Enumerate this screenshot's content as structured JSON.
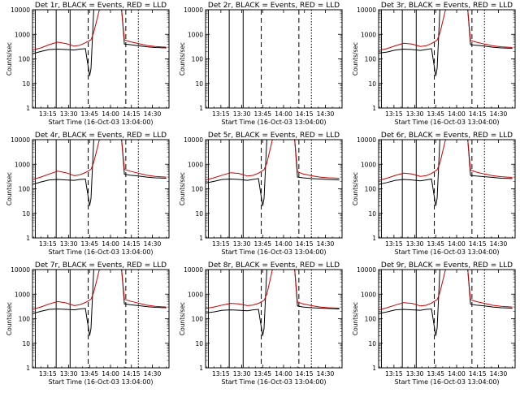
{
  "figure": {
    "xlabel_prefix": "Start Time",
    "start_time_label": "Start Time (16-Oct-03 13:04:00)",
    "ylabel": "Counts/sec",
    "legend_text": "BLACK = Events, RED = LLD"
  },
  "chart_data": [
    {
      "type": "line",
      "title": "Det 1r, BLACK = Events, RED = LLD",
      "xlabel": "Start Time (16-Oct-03 13:04:00)",
      "ylabel": "Counts/sec",
      "yscale": "log",
      "ylim": [
        1,
        10000
      ],
      "xlim": [
        "13:04",
        "14:42"
      ],
      "x_ticks": [
        "13:15",
        "13:30",
        "13:45",
        "14:00",
        "14:15",
        "14:30"
      ],
      "y_ticks": [
        "1",
        "10",
        "100",
        "1000",
        "10000"
      ],
      "has_data": true,
      "series": [
        {
          "color": "#000000",
          "x": [
            "13:04",
            "13:10",
            "13:16",
            "13:22",
            "13:28",
            "13:34",
            "13:38",
            "13:42",
            "13:45",
            "13:46",
            "13:48",
            "13:52",
            "14:03",
            "14:08",
            "14:10",
            "14:14",
            "14:20",
            "14:26",
            "14:32",
            "14:40"
          ],
          "values": [
            160,
            200,
            240,
            250,
            240,
            230,
            250,
            260,
            20,
            40,
            10000,
            10000,
            10000,
            10000,
            400,
            380,
            340,
            310,
            290,
            280
          ]
        },
        {
          "color": "#cc0000",
          "x": [
            "13:04",
            "13:10",
            "13:16",
            "13:22",
            "13:28",
            "13:34",
            "13:38",
            "13:42",
            "13:46",
            "13:48",
            "13:52",
            "14:03",
            "14:08",
            "14:10",
            "14:14",
            "14:20",
            "14:26",
            "14:32",
            "14:40"
          ],
          "values": [
            230,
            280,
            380,
            480,
            420,
            330,
            360,
            450,
            600,
            1200,
            10000,
            10000,
            10000,
            600,
            500,
            420,
            350,
            320,
            300
          ]
        }
      ]
    },
    {
      "type": "line",
      "title": "Det 2r, BLACK = Events, RED = LLD",
      "xlabel": "Start Time (16-Oct-03 13:04:00)",
      "ylabel": "Counts/sec",
      "yscale": "log",
      "ylim": [
        1,
        10000
      ],
      "xlim": [
        "13:04",
        "14:42"
      ],
      "x_ticks": [
        "13:15",
        "13:30",
        "13:45",
        "14:00",
        "14:15",
        "14:30"
      ],
      "y_ticks": [
        "1",
        "10",
        "100",
        "1000",
        "10000"
      ],
      "has_data": false,
      "series": []
    },
    {
      "type": "line",
      "title": "Det 3r, BLACK = Events, RED = LLD",
      "xlabel": "Start Time (16-Oct-03 13:04:00)",
      "ylabel": "Counts/sec",
      "yscale": "log",
      "ylim": [
        1,
        10000
      ],
      "xlim": [
        "13:04",
        "14:42"
      ],
      "x_ticks": [
        "13:15",
        "13:30",
        "13:45",
        "14:00",
        "14:15",
        "14:30"
      ],
      "y_ticks": [
        "1",
        "10",
        "100",
        "1000",
        "10000"
      ],
      "has_data": true,
      "series": [
        {
          "color": "#000000",
          "x": [
            "13:04",
            "13:10",
            "13:16",
            "13:22",
            "13:28",
            "13:34",
            "13:38",
            "13:42",
            "13:45",
            "13:46",
            "13:48",
            "13:52",
            "14:03",
            "14:08",
            "14:10",
            "14:14",
            "14:20",
            "14:26",
            "14:32",
            "14:40"
          ],
          "values": [
            170,
            190,
            230,
            250,
            240,
            220,
            240,
            260,
            20,
            40,
            10000,
            10000,
            10000,
            10000,
            380,
            360,
            330,
            300,
            280,
            270
          ]
        },
        {
          "color": "#cc0000",
          "x": [
            "13:04",
            "13:10",
            "13:16",
            "13:22",
            "13:28",
            "13:34",
            "13:38",
            "13:42",
            "13:46",
            "13:48",
            "13:52",
            "14:03",
            "14:08",
            "14:10",
            "14:14",
            "14:20",
            "14:26",
            "14:32",
            "14:40"
          ],
          "values": [
            220,
            260,
            340,
            430,
            400,
            320,
            340,
            420,
            580,
            1100,
            10000,
            10000,
            10000,
            560,
            480,
            400,
            340,
            310,
            290
          ]
        }
      ]
    },
    {
      "type": "line",
      "title": "Det 4r, BLACK = Events, RED = LLD",
      "xlabel": "Start Time (16-Oct-03 13:04:00)",
      "ylabel": "Counts/sec",
      "yscale": "log",
      "ylim": [
        1,
        10000
      ],
      "xlim": [
        "13:04",
        "14:42"
      ],
      "x_ticks": [
        "13:15",
        "13:30",
        "13:45",
        "14:00",
        "14:15",
        "14:30"
      ],
      "y_ticks": [
        "1",
        "10",
        "100",
        "1000",
        "10000"
      ],
      "has_data": true,
      "series": [
        {
          "color": "#000000",
          "x": [
            "13:04",
            "13:10",
            "13:16",
            "13:22",
            "13:28",
            "13:34",
            "13:38",
            "13:42",
            "13:45",
            "13:46",
            "13:48",
            "13:52",
            "14:03",
            "14:08",
            "14:10",
            "14:14",
            "14:20",
            "14:26",
            "14:32",
            "14:40"
          ],
          "values": [
            150,
            190,
            230,
            240,
            230,
            220,
            240,
            250,
            20,
            40,
            10000,
            10000,
            10000,
            10000,
            390,
            360,
            330,
            300,
            280,
            270
          ]
        },
        {
          "color": "#cc0000",
          "x": [
            "13:04",
            "13:10",
            "13:16",
            "13:22",
            "13:28",
            "13:34",
            "13:38",
            "13:42",
            "13:46",
            "13:48",
            "13:52",
            "14:03",
            "14:08",
            "14:10",
            "14:14",
            "14:20",
            "14:26",
            "14:32",
            "14:40"
          ],
          "values": [
            240,
            300,
            400,
            520,
            450,
            340,
            370,
            460,
            620,
            1200,
            10000,
            10000,
            10000,
            620,
            520,
            430,
            360,
            320,
            300
          ]
        }
      ]
    },
    {
      "type": "line",
      "title": "Det 5r, BLACK = Events, RED = LLD",
      "xlabel": "Start Time (16-Oct-03 13:04:00)",
      "ylabel": "Counts/sec",
      "yscale": "log",
      "ylim": [
        1,
        10000
      ],
      "xlim": [
        "13:04",
        "14:42"
      ],
      "x_ticks": [
        "13:15",
        "13:30",
        "13:45",
        "14:00",
        "14:15",
        "14:30"
      ],
      "y_ticks": [
        "1",
        "10",
        "100",
        "1000",
        "10000"
      ],
      "has_data": true,
      "series": [
        {
          "color": "#000000",
          "x": [
            "13:04",
            "13:10",
            "13:16",
            "13:22",
            "13:28",
            "13:34",
            "13:38",
            "13:42",
            "13:45",
            "13:46",
            "13:48",
            "13:52",
            "14:03",
            "14:08",
            "14:10",
            "14:14",
            "14:20",
            "14:26",
            "14:32",
            "14:40"
          ],
          "values": [
            170,
            200,
            240,
            250,
            240,
            220,
            240,
            260,
            20,
            40,
            10000,
            10000,
            10000,
            10000,
            300,
            280,
            260,
            250,
            240,
            230
          ]
        },
        {
          "color": "#cc0000",
          "x": [
            "13:04",
            "13:10",
            "13:16",
            "13:22",
            "13:28",
            "13:34",
            "13:38",
            "13:42",
            "13:46",
            "13:48",
            "13:52",
            "14:03",
            "14:08",
            "14:10",
            "14:14",
            "14:20",
            "14:26",
            "14:32",
            "14:40"
          ],
          "values": [
            230,
            280,
            360,
            450,
            420,
            330,
            350,
            430,
            600,
            1100,
            10000,
            10000,
            10000,
            500,
            400,
            340,
            300,
            280,
            270
          ]
        }
      ]
    },
    {
      "type": "line",
      "title": "Det 6r, BLACK = Events, RED = LLD",
      "xlabel": "Start Time (16-Oct-03 13:04:00)",
      "ylabel": "Counts/sec",
      "yscale": "log",
      "ylim": [
        1,
        10000
      ],
      "xlim": [
        "13:04",
        "14:42"
      ],
      "x_ticks": [
        "13:15",
        "13:30",
        "13:45",
        "14:00",
        "14:15",
        "14:30"
      ],
      "y_ticks": [
        "1",
        "10",
        "100",
        "1000",
        "10000"
      ],
      "has_data": true,
      "series": [
        {
          "color": "#000000",
          "x": [
            "13:04",
            "13:10",
            "13:16",
            "13:22",
            "13:28",
            "13:34",
            "13:38",
            "13:42",
            "13:45",
            "13:46",
            "13:48",
            "13:52",
            "14:03",
            "14:08",
            "14:10",
            "14:14",
            "14:20",
            "14:26",
            "14:32",
            "14:40"
          ],
          "values": [
            150,
            180,
            220,
            240,
            230,
            210,
            230,
            250,
            20,
            40,
            10000,
            10000,
            10000,
            10000,
            350,
            330,
            310,
            290,
            270,
            260
          ]
        },
        {
          "color": "#cc0000",
          "x": [
            "13:04",
            "13:10",
            "13:16",
            "13:22",
            "13:28",
            "13:34",
            "13:38",
            "13:42",
            "13:46",
            "13:48",
            "13:52",
            "14:03",
            "14:08",
            "14:10",
            "14:14",
            "14:20",
            "14:26",
            "14:32",
            "14:40"
          ],
          "values": [
            220,
            270,
            350,
            430,
            400,
            320,
            340,
            420,
            590,
            1100,
            10000,
            10000,
            10000,
            580,
            480,
            400,
            340,
            310,
            290
          ]
        }
      ]
    },
    {
      "type": "line",
      "title": "Det 7r, BLACK = Events, RED = LLD",
      "xlabel": "Start Time (16-Oct-03 13:04:00)",
      "ylabel": "Counts/sec",
      "yscale": "log",
      "ylim": [
        1,
        10000
      ],
      "xlim": [
        "13:04",
        "14:42"
      ],
      "x_ticks": [
        "13:15",
        "13:30",
        "13:45",
        "14:00",
        "14:15",
        "14:30"
      ],
      "y_ticks": [
        "1",
        "10",
        "100",
        "1000",
        "10000"
      ],
      "has_data": true,
      "series": [
        {
          "color": "#000000",
          "x": [
            "13:04",
            "13:10",
            "13:16",
            "13:22",
            "13:28",
            "13:34",
            "13:38",
            "13:42",
            "13:45",
            "13:46",
            "13:48",
            "13:52",
            "14:03",
            "14:08",
            "14:10",
            "14:14",
            "14:20",
            "14:26",
            "14:32",
            "14:40"
          ],
          "values": [
            160,
            200,
            240,
            250,
            240,
            230,
            250,
            260,
            20,
            40,
            10000,
            10000,
            10000,
            10000,
            400,
            370,
            340,
            310,
            290,
            280
          ]
        },
        {
          "color": "#cc0000",
          "x": [
            "13:04",
            "13:10",
            "13:16",
            "13:22",
            "13:28",
            "13:34",
            "13:38",
            "13:42",
            "13:46",
            "13:48",
            "13:52",
            "14:03",
            "14:08",
            "14:10",
            "14:14",
            "14:20",
            "14:26",
            "14:32",
            "14:40"
          ],
          "values": [
            240,
            300,
            400,
            500,
            440,
            340,
            370,
            460,
            620,
            1200,
            10000,
            10000,
            10000,
            620,
            520,
            430,
            360,
            320,
            300
          ]
        }
      ]
    },
    {
      "type": "line",
      "title": "Det 8r, BLACK = Events, RED = LLD",
      "xlabel": "Start Time (16-Oct-03 13:04:00)",
      "ylabel": "Counts/sec",
      "yscale": "log",
      "ylim": [
        1,
        10000
      ],
      "xlim": [
        "13:04",
        "14:42"
      ],
      "x_ticks": [
        "13:15",
        "13:30",
        "13:45",
        "14:00",
        "14:15",
        "14:30"
      ],
      "y_ticks": [
        "1",
        "10",
        "100",
        "1000",
        "10000"
      ],
      "has_data": true,
      "series": [
        {
          "color": "#000000",
          "x": [
            "13:04",
            "13:10",
            "13:16",
            "13:22",
            "13:28",
            "13:34",
            "13:38",
            "13:42",
            "13:45",
            "13:46",
            "13:48",
            "13:52",
            "14:03",
            "14:08",
            "14:10",
            "14:14",
            "14:20",
            "14:26",
            "14:32",
            "14:40"
          ],
          "values": [
            170,
            190,
            220,
            230,
            220,
            210,
            230,
            240,
            20,
            40,
            10000,
            10000,
            10000,
            10000,
            330,
            300,
            280,
            270,
            260,
            250
          ]
        },
        {
          "color": "#cc0000",
          "x": [
            "13:04",
            "13:10",
            "13:16",
            "13:22",
            "13:28",
            "13:34",
            "13:38",
            "13:42",
            "13:46",
            "13:48",
            "13:52",
            "14:03",
            "14:08",
            "14:10",
            "14:14",
            "14:20",
            "14:26",
            "14:32",
            "14:40"
          ],
          "values": [
            260,
            300,
            360,
            420,
            400,
            340,
            360,
            420,
            560,
            1000,
            10000,
            10000,
            10000,
            480,
            400,
            340,
            300,
            280,
            270
          ]
        }
      ]
    },
    {
      "type": "line",
      "title": "Det 9r, BLACK = Events, RED = LLD",
      "xlabel": "Start Time (16-Oct-03 13:04:00)",
      "ylabel": "Counts/sec",
      "yscale": "log",
      "ylim": [
        1,
        10000
      ],
      "xlim": [
        "13:04",
        "14:42"
      ],
      "x_ticks": [
        "13:15",
        "13:30",
        "13:45",
        "14:00",
        "14:15",
        "14:30"
      ],
      "y_ticks": [
        "1",
        "10",
        "100",
        "1000",
        "10000"
      ],
      "has_data": true,
      "series": [
        {
          "color": "#000000",
          "x": [
            "13:04",
            "13:10",
            "13:16",
            "13:22",
            "13:28",
            "13:34",
            "13:38",
            "13:42",
            "13:45",
            "13:46",
            "13:48",
            "13:52",
            "14:03",
            "14:08",
            "14:10",
            "14:14",
            "14:20",
            "14:26",
            "14:32",
            "14:40"
          ],
          "values": [
            160,
            190,
            230,
            240,
            230,
            220,
            240,
            250,
            20,
            40,
            10000,
            10000,
            10000,
            10000,
            390,
            360,
            330,
            300,
            280,
            270
          ]
        },
        {
          "color": "#cc0000",
          "x": [
            "13:04",
            "13:10",
            "13:16",
            "13:22",
            "13:28",
            "13:34",
            "13:38",
            "13:42",
            "13:46",
            "13:48",
            "13:52",
            "14:03",
            "14:08",
            "14:10",
            "14:14",
            "14:20",
            "14:26",
            "14:32",
            "14:40"
          ],
          "values": [
            230,
            280,
            360,
            450,
            420,
            330,
            350,
            430,
            600,
            1150,
            10000,
            10000,
            10000,
            600,
            500,
            420,
            350,
            320,
            300
          ]
        }
      ]
    }
  ],
  "markers": {
    "solid_lines": [
      "13:06",
      "13:21",
      "13:31"
    ],
    "dashed_lines": [
      "13:44",
      "14:11"
    ],
    "dotted_lines": [
      "14:20"
    ],
    "solid_color": "#000000"
  }
}
